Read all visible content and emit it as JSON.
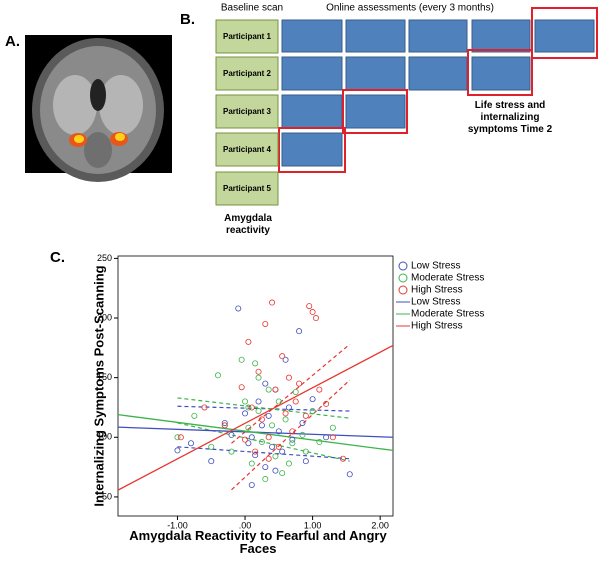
{
  "panels": {
    "a": "A.",
    "b": "B.",
    "c": "C."
  },
  "diagram": {
    "baseline_label": "Baseline scan",
    "online_label": "Online assessments (every 3 months)",
    "participants": [
      "Participant 1",
      "Participant 2",
      "Participant 3",
      "Participant 4",
      "Participant 5"
    ],
    "baseline_caption": "Amygdala reactivity",
    "time2_caption": "Life stress and internalizing symptoms Time 2"
  },
  "chart_data": {
    "type": "scatter",
    "x_label": "Amygdala Reactivity to Fearful and Angry Faces",
    "y_label": "Internalizing Symptoms Post-Scanning",
    "xlim": [
      -1.88,
      2.19
    ],
    "ylim": [
      34,
      252
    ],
    "xticks": [
      {
        "value": -1,
        "label": "-1.00"
      },
      {
        "value": 0,
        "label": ".00"
      },
      {
        "value": 1,
        "label": "1.00"
      },
      {
        "value": 2,
        "label": "2.00"
      }
    ],
    "yticks": [
      50,
      100,
      150,
      200,
      250
    ],
    "grid": false,
    "series": [
      {
        "name": "Low Stress",
        "color": "#3f4fbf",
        "x": [
          -1.0,
          -0.8,
          -0.5,
          -0.3,
          -0.1,
          0.0,
          0.05,
          0.1,
          0.15,
          0.2,
          0.25,
          0.3,
          0.35,
          0.4,
          0.45,
          0.5,
          0.55,
          0.6,
          0.65,
          0.7,
          0.8,
          0.85,
          0.9,
          1.0,
          1.2,
          1.55,
          0.1,
          0.3,
          -0.2,
          0.45
        ],
        "values": [
          89,
          95,
          80,
          112,
          208,
          120,
          95,
          100,
          85,
          130,
          110,
          75,
          118,
          92,
          140,
          105,
          88,
          165,
          125,
          98,
          189,
          112,
          80,
          132,
          100,
          69,
          60,
          145,
          102,
          72
        ]
      },
      {
        "name": "Moderate Stress",
        "color": "#3cb44a",
        "x": [
          -1.0,
          -0.75,
          -0.5,
          -0.4,
          -0.2,
          -0.05,
          0.0,
          0.05,
          0.1,
          0.15,
          0.2,
          0.25,
          0.3,
          0.35,
          0.4,
          0.45,
          0.5,
          0.55,
          0.6,
          0.7,
          0.75,
          0.85,
          0.9,
          1.0,
          1.1,
          1.3,
          -0.3,
          0.2,
          0.65,
          0.05
        ],
        "values": [
          100,
          118,
          92,
          152,
          88,
          165,
          130,
          108,
          78,
          162,
          122,
          96,
          65,
          140,
          110,
          84,
          130,
          70,
          115,
          95,
          138,
          102,
          88,
          122,
          96,
          108,
          110,
          150,
          78,
          125
        ]
      },
      {
        "name": "High Stress",
        "color": "#e8352f",
        "x": [
          -0.95,
          -0.6,
          -0.3,
          -0.05,
          0.0,
          0.05,
          0.1,
          0.15,
          0.2,
          0.25,
          0.3,
          0.35,
          0.4,
          0.45,
          0.5,
          0.55,
          0.6,
          0.65,
          0.7,
          0.75,
          0.8,
          0.9,
          0.95,
          1.0,
          1.05,
          1.1,
          1.2,
          1.3,
          1.45,
          0.35
        ],
        "values": [
          100,
          125,
          110,
          142,
          98,
          180,
          125,
          88,
          155,
          115,
          195,
          100,
          213,
          140,
          92,
          168,
          120,
          150,
          105,
          130,
          145,
          118,
          210,
          205,
          200,
          140,
          128,
          100,
          82,
          82
        ]
      }
    ],
    "fit_lines": [
      {
        "name": "Low Stress",
        "color": "#3f4fbf",
        "x": [
          -1.88,
          2.19
        ],
        "values": [
          108.5,
          100
        ]
      },
      {
        "name": "Moderate Stress",
        "color": "#3cb44a",
        "x": [
          -1.88,
          2.19
        ],
        "values": [
          119,
          89
        ]
      },
      {
        "name": "High Stress",
        "color": "#e8352f",
        "x": [
          -1.88,
          2.19
        ],
        "values": [
          55.7,
          177
        ]
      }
    ],
    "ci_bands": [
      {
        "color": "#3f4fbf",
        "x": [
          -1.0,
          1.55
        ],
        "lower": [
          92,
          82
        ],
        "upper": [
          126,
          122
        ]
      },
      {
        "color": "#3cb44a",
        "x": [
          -1.0,
          1.55
        ],
        "lower": [
          112,
          80
        ],
        "upper": [
          133,
          116
        ]
      },
      {
        "color": "#e8352f",
        "x": [
          -0.2,
          1.55
        ],
        "lower": [
          56,
          148
        ],
        "upper": [
          95,
          178
        ]
      }
    ]
  }
}
